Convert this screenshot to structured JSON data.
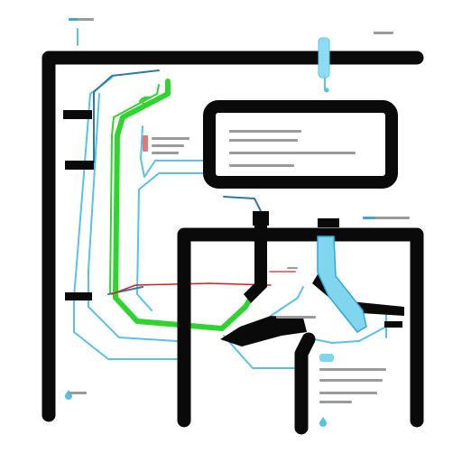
{
  "colors": {
    "background": "#ffffff",
    "frame": "#0a0a0a",
    "cyan": "#56c3e6",
    "cyan_fill": "#7fd6ee",
    "steel": "#2d79a6",
    "green": "#2fd42f",
    "red": "#d62020",
    "label_text": "#6b6b6b",
    "tag_text": "#ffffff"
  },
  "icons": {
    "plant_marker": "leaf-icon",
    "drop_marker": "drop-icon"
  }
}
